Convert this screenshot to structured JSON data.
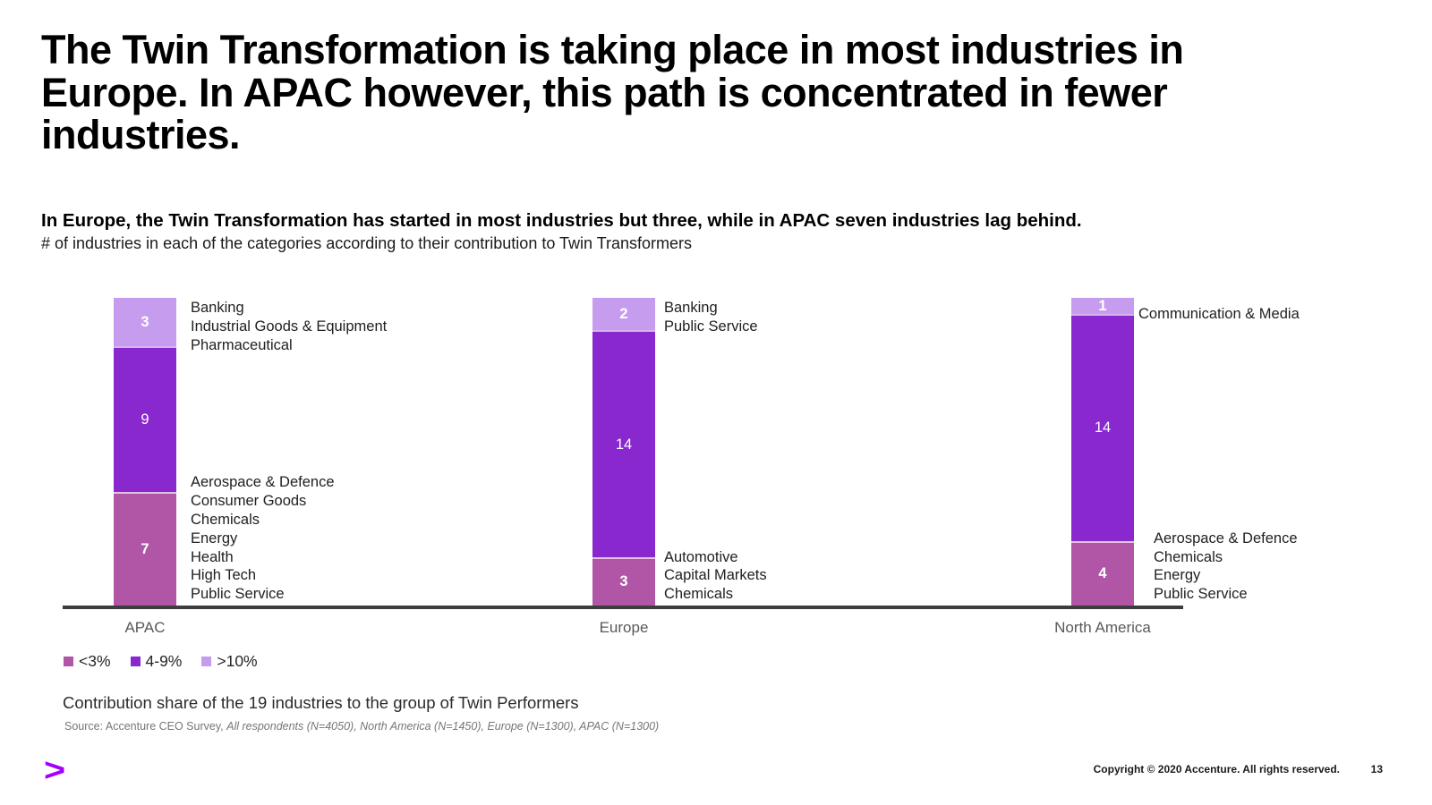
{
  "slide": {
    "title": "The Twin Transformation is taking place in most industries in Europe. In APAC however, this path is concentrated in fewer industries.",
    "subtitle_bold": "In Europe, the Twin Transformation has started in most industries but three, while in APAC seven industries lag behind.",
    "subtitle_note": "# of industries in each of the categories according to their contribution to Twin Transformers",
    "footnote": "Contribution share of the 19 industries to the group of Twin Performers",
    "source_prefix": "Source: Accenture CEO Survey, ",
    "source_italic": "All respondents (N=4050), North America (N=1450), Europe (N=1300), APAC (N=1300)",
    "copyright": "Copyright © 2020 Accenture. All rights reserved.",
    "page_number": "13",
    "logo_glyph": ">"
  },
  "colors": {
    "lt3": "#B155A7",
    "mid": "#8928CF",
    "gt10": "#C69DEE",
    "axis": "#3D3D3D",
    "accent": "#A100FF"
  },
  "legend": [
    {
      "label": "<3%",
      "color_key": "lt3"
    },
    {
      "label": "4-9%",
      "color_key": "mid"
    },
    {
      "label": ">10%",
      "color_key": "gt10"
    }
  ],
  "chart_data": {
    "type": "bar",
    "stacked": true,
    "title": "# of industries in each of the categories according to their contribution to Twin Transformers",
    "xlabel": "",
    "ylabel": "# of industries",
    "grid": false,
    "legend_position": "bottom-left",
    "total_per_category": 19,
    "categories": [
      "APAC",
      "Europe",
      "North America"
    ],
    "series": [
      {
        "name": "<3%",
        "color_key": "lt3",
        "values": [
          7,
          3,
          4
        ]
      },
      {
        "name": "4-9%",
        "color_key": "mid",
        "values": [
          9,
          14,
          14
        ]
      },
      {
        "name": ">10%",
        "color_key": "gt10",
        "values": [
          3,
          2,
          1
        ]
      }
    ],
    "industry_annotations": [
      {
        "category": "APAC",
        "segment": ">10%",
        "industries": [
          "Banking",
          "Industrial Goods & Equipment",
          "Pharmaceutical"
        ]
      },
      {
        "category": "APAC",
        "segment": "<3%",
        "industries": [
          "Aerospace & Defence",
          "Consumer Goods",
          "Chemicals",
          "Energy",
          "Health",
          "High Tech",
          "Public Service"
        ]
      },
      {
        "category": "Europe",
        "segment": ">10%",
        "industries": [
          "Banking",
          "Public Service"
        ]
      },
      {
        "category": "Europe",
        "segment": "<3%",
        "industries": [
          "Automotive",
          "Capital Markets",
          "Chemicals"
        ]
      },
      {
        "category": "North America",
        "segment": ">10%",
        "industries": [
          "Communication & Media"
        ]
      },
      {
        "category": "North America",
        "segment": "<3%",
        "industries": [
          "Aerospace & Defence",
          "Chemicals",
          "Energy",
          "Public Service"
        ]
      }
    ]
  }
}
